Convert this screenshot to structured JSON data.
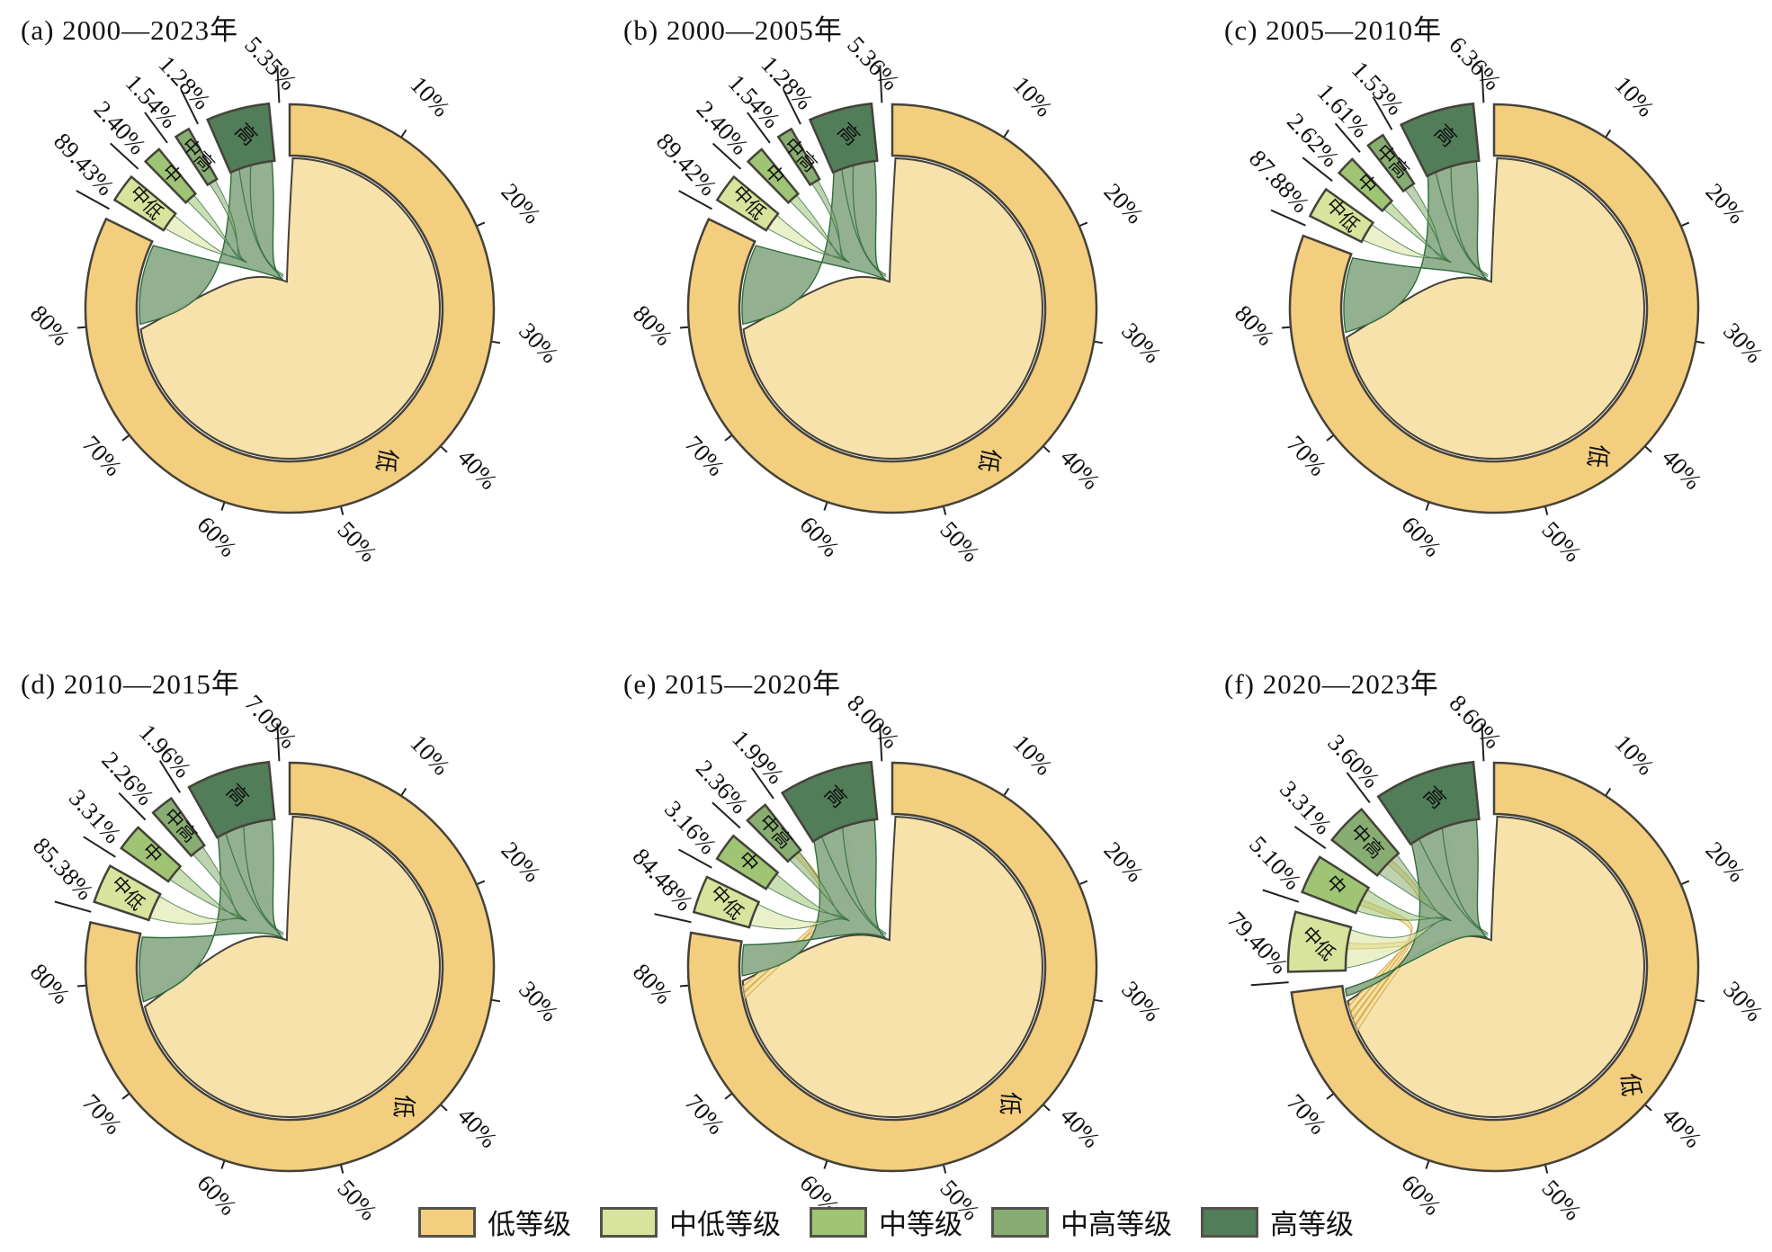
{
  "chart_data": {
    "type": "chord",
    "unit": "%",
    "layout": "2 rows x 3 columns of circular chord diagrams, shared legend at bottom",
    "categories": [
      {
        "key": "low",
        "label": "低"
      },
      {
        "key": "mid_low",
        "label": "中低"
      },
      {
        "key": "mid",
        "label": "中"
      },
      {
        "key": "mid_high",
        "label": "中高"
      },
      {
        "key": "high",
        "label": "高"
      }
    ],
    "axis_ticks": [
      "10%",
      "20%",
      "30%",
      "40%",
      "50%",
      "60%",
      "70%",
      "80%"
    ],
    "panels": [
      {
        "id": "a",
        "title": "(a) 2000—2023年",
        "values": [
          89.43,
          2.4,
          1.54,
          1.28,
          5.35
        ],
        "value_labels": [
          "89.43%",
          "2.40%",
          "1.54%",
          "1.28%",
          "5.35%"
        ],
        "ribbon_hints": {
          "tail_deg": 32,
          "yellow_ribbons": 0
        }
      },
      {
        "id": "b",
        "title": "(b) 2000—2005年",
        "values": [
          89.42,
          2.4,
          1.54,
          1.28,
          5.36
        ],
        "value_labels": [
          "89.42%",
          "2.40%",
          "1.54%",
          "1.28%",
          "5.36%"
        ],
        "ribbon_hints": {
          "tail_deg": 32,
          "yellow_ribbons": 0
        }
      },
      {
        "id": "c",
        "title": "(c) 2005—2010年",
        "values": [
          87.88,
          2.62,
          1.61,
          1.53,
          6.36
        ],
        "value_labels": [
          "87.88%",
          "2.62%",
          "1.61%",
          "1.53%",
          "6.36%"
        ],
        "ribbon_hints": {
          "tail_deg": 30,
          "yellow_ribbons": 0
        }
      },
      {
        "id": "d",
        "title": "(d) 2010—2015年",
        "values": [
          85.38,
          3.31,
          2.26,
          1.96,
          7.09
        ],
        "value_labels": [
          "85.38%",
          "3.31%",
          "2.26%",
          "1.96%",
          "7.09%"
        ],
        "ribbon_hints": {
          "tail_deg": 26,
          "yellow_ribbons": 0
        }
      },
      {
        "id": "e",
        "title": "(e) 2015—2020年",
        "values": [
          84.48,
          3.16,
          2.36,
          1.99,
          8.0
        ],
        "value_labels": [
          "84.48%",
          "3.16%",
          "2.36%",
          "1.99%",
          "8.00%"
        ],
        "ribbon_hints": {
          "tail_deg": 13,
          "yellow_ribbons": 2
        }
      },
      {
        "id": "f",
        "title": "(f) 2020—2023年",
        "values": [
          79.4,
          5.1,
          3.31,
          3.6,
          8.6
        ],
        "value_labels": [
          "79.40%",
          "5.10%",
          "3.31%",
          "3.60%",
          "8.60%"
        ],
        "ribbon_hints": {
          "tail_deg": 4,
          "yellow_ribbons": 4
        }
      }
    ]
  },
  "legend_items": [
    {
      "label": "低等级",
      "color": "#F2CE7E"
    },
    {
      "label": "中低等级",
      "color": "#D8E49D"
    },
    {
      "label": "中等级",
      "color": "#9EC474"
    },
    {
      "label": "中高等级",
      "color": "#88AD72"
    },
    {
      "label": "高等级",
      "color": "#517D58"
    }
  ],
  "colors": {
    "low": "#F2CE7E",
    "mid_low": "#D8E49D",
    "mid": "#9EC474",
    "mid_high": "#88AD72",
    "high": "#517D58",
    "low_self_chord": "#F7E2AB",
    "high_low_ribbon": "#8FAE8B",
    "yellow_ribbon_fill": "#F5E0A0",
    "yellow_ribbon_stroke": "#D8A74F",
    "ribbon_stroke": "#2F6B3C",
    "outline": "#45423A",
    "text": "#111111"
  }
}
